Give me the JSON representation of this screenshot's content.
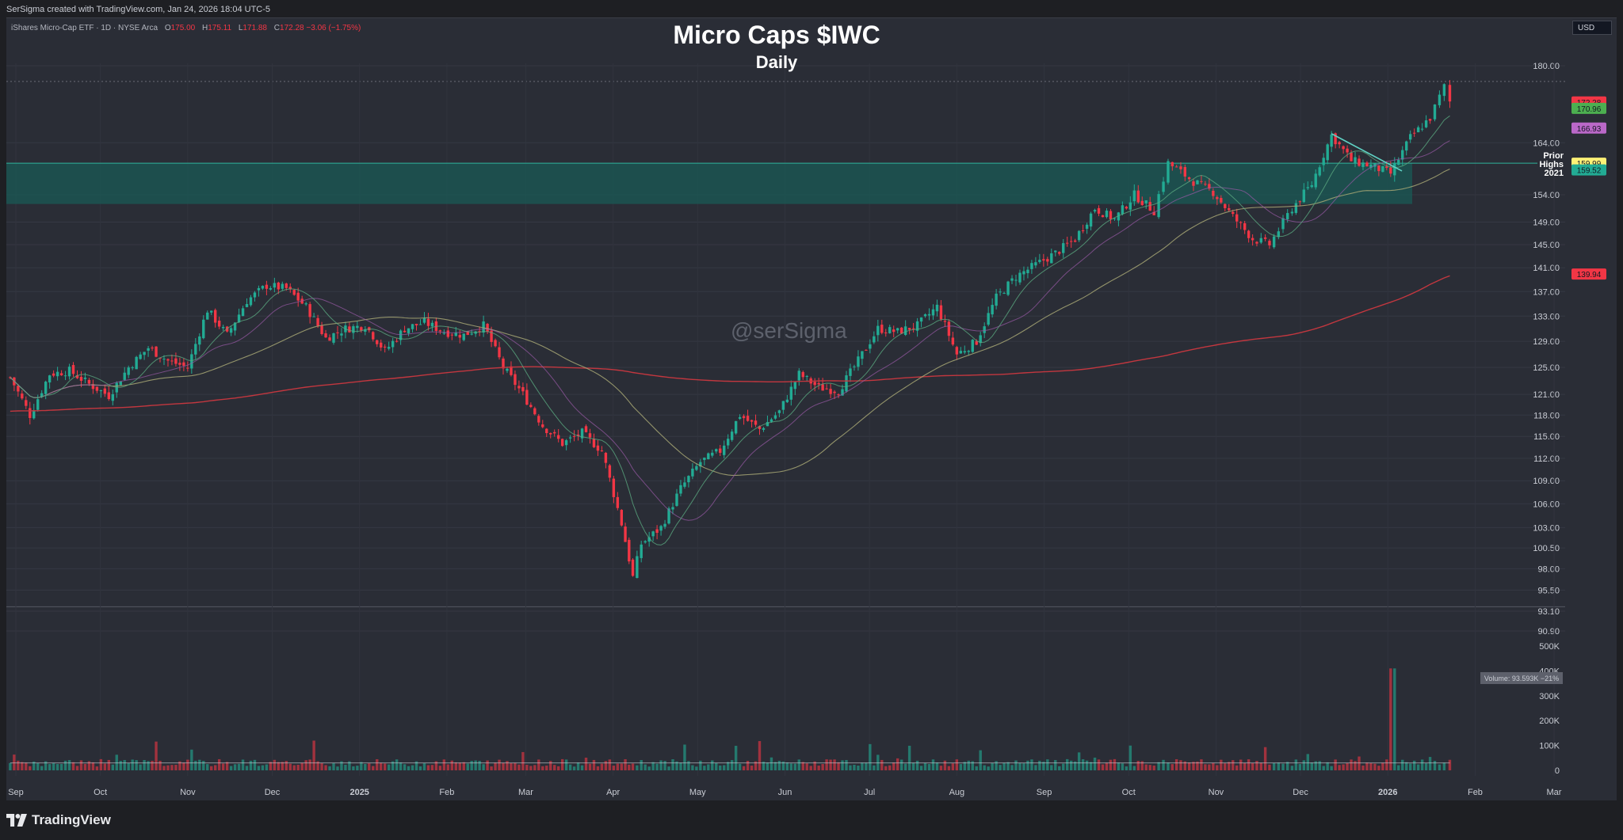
{
  "header": {
    "created_by": "SerSigma created with TradingView.com, Jan 24, 2026 18:04 UTC-5"
  },
  "legend": {
    "symbol": "iShares Micro-Cap ETF · 1D · NYSE Arca",
    "o_label": "O",
    "o": "175.00",
    "h_label": "H",
    "h": "175.11",
    "l_label": "L",
    "l": "171.88",
    "c_label": "C",
    "c": "172.28",
    "change": "−3.06 (−1.75%)"
  },
  "currency": "USD",
  "watermark": "@serSigma",
  "footer": {
    "brand": "TradingView"
  },
  "colors": {
    "up": "#22ab94",
    "down": "#f23645",
    "background": "#2a2d36",
    "zone": "#1a5a55",
    "sma200": "#c2373f",
    "sma50": "#a7a774",
    "ema21": "#9a5aa6",
    "ema10": "#5aa77f"
  },
  "chart_data": {
    "type": "candlestick",
    "title": "Micro Caps $IWC",
    "subtitle": "Daily",
    "scale": "log",
    "ylim": [
      90.9,
      183.0
    ],
    "price_ticks": [
      "180.00",
      "164.00",
      "154.00",
      "149.00",
      "145.00",
      "141.00",
      "137.00",
      "133.00",
      "129.00",
      "125.00",
      "121.00",
      "118.00",
      "115.00",
      "112.00",
      "109.00",
      "106.00",
      "103.00",
      "100.50",
      "98.00",
      "95.50",
      "93.10",
      "90.90"
    ],
    "x_labels": [
      "Sep",
      "Oct",
      "Nov",
      "Dec",
      "2025",
      "Feb",
      "Mar",
      "Apr",
      "May",
      "Jun",
      "Jul",
      "Aug",
      "Sep",
      "Oct",
      "Nov",
      "Dec",
      "2026",
      "Feb",
      "Mar"
    ],
    "price_badges": [
      {
        "value": "172.28",
        "color": "#f23645"
      },
      {
        "value": "170.96",
        "color": "#4caf50"
      },
      {
        "value": "166.93",
        "color": "#ba68c8"
      },
      {
        "value": "159.99",
        "color": "#fff176"
      },
      {
        "value": "159.52",
        "color": "#22ab94"
      },
      {
        "value": "139.94",
        "color": "#f23645"
      }
    ],
    "zone": {
      "low": 152.3,
      "high": 160.0,
      "label_lines": [
        "Prior",
        "Highs",
        "2021"
      ]
    },
    "volume_ticks": [
      "500K",
      "400K",
      "300K",
      "200K",
      "100K",
      "0"
    ],
    "volume_badge": "Volume: 93.593K −21%",
    "close_path": [
      {
        "date": "2024-08-30",
        "close": 123.5
      },
      {
        "date": "2024-09-06",
        "close": 118.0
      },
      {
        "date": "2024-09-13",
        "close": 124.0
      },
      {
        "date": "2024-09-20",
        "close": 124.5
      },
      {
        "date": "2024-09-27",
        "close": 122.5
      },
      {
        "date": "2024-10-04",
        "close": 120.8
      },
      {
        "date": "2024-10-11",
        "close": 125.0
      },
      {
        "date": "2024-10-18",
        "close": 128.0
      },
      {
        "date": "2024-10-25",
        "close": 126.0
      },
      {
        "date": "2024-11-01",
        "close": 125.0
      },
      {
        "date": "2024-11-08",
        "close": 134.0
      },
      {
        "date": "2024-11-15",
        "close": 130.0
      },
      {
        "date": "2024-11-22",
        "close": 135.5
      },
      {
        "date": "2024-11-29",
        "close": 138.0
      },
      {
        "date": "2024-12-06",
        "close": 137.5
      },
      {
        "date": "2024-12-13",
        "close": 134.5
      },
      {
        "date": "2024-12-20",
        "close": 129.5
      },
      {
        "date": "2024-12-27",
        "close": 131.0
      },
      {
        "date": "2025-01-03",
        "close": 131.5
      },
      {
        "date": "2025-01-10",
        "close": 127.5
      },
      {
        "date": "2025-01-17",
        "close": 131.0
      },
      {
        "date": "2025-01-24",
        "close": 132.0
      },
      {
        "date": "2025-01-31",
        "close": 130.5
      },
      {
        "date": "2025-02-07",
        "close": 130.0
      },
      {
        "date": "2025-02-14",
        "close": 131.5
      },
      {
        "date": "2025-02-21",
        "close": 125.0
      },
      {
        "date": "2025-02-28",
        "close": 121.0
      },
      {
        "date": "2025-03-07",
        "close": 116.5
      },
      {
        "date": "2025-03-14",
        "close": 114.0
      },
      {
        "date": "2025-03-21",
        "close": 115.5
      },
      {
        "date": "2025-03-28",
        "close": 113.0
      },
      {
        "date": "2025-04-04",
        "close": 103.5
      },
      {
        "date": "2025-04-08",
        "close": 97.0
      },
      {
        "date": "2025-04-11",
        "close": 101.0
      },
      {
        "date": "2025-04-18",
        "close": 103.0
      },
      {
        "date": "2025-04-25",
        "close": 108.0
      },
      {
        "date": "2025-05-02",
        "close": 111.5
      },
      {
        "date": "2025-05-09",
        "close": 113.0
      },
      {
        "date": "2025-05-16",
        "close": 118.0
      },
      {
        "date": "2025-05-23",
        "close": 116.0
      },
      {
        "date": "2025-05-30",
        "close": 118.5
      },
      {
        "date": "2025-06-06",
        "close": 124.0
      },
      {
        "date": "2025-06-13",
        "close": 122.0
      },
      {
        "date": "2025-06-20",
        "close": 121.5
      },
      {
        "date": "2025-06-27",
        "close": 126.0
      },
      {
        "date": "2025-07-04",
        "close": 131.0
      },
      {
        "date": "2025-07-11",
        "close": 130.5
      },
      {
        "date": "2025-07-18",
        "close": 131.5
      },
      {
        "date": "2025-07-25",
        "close": 134.5
      },
      {
        "date": "2025-08-01",
        "close": 127.0
      },
      {
        "date": "2025-08-08",
        "close": 129.0
      },
      {
        "date": "2025-08-15",
        "close": 136.0
      },
      {
        "date": "2025-08-22",
        "close": 139.5
      },
      {
        "date": "2025-08-29",
        "close": 141.5
      },
      {
        "date": "2025-09-05",
        "close": 143.5
      },
      {
        "date": "2025-09-12",
        "close": 146.0
      },
      {
        "date": "2025-09-19",
        "close": 151.5
      },
      {
        "date": "2025-09-26",
        "close": 149.5
      },
      {
        "date": "2025-10-03",
        "close": 154.0
      },
      {
        "date": "2025-10-10",
        "close": 151.0
      },
      {
        "date": "2025-10-15",
        "close": 160.0
      },
      {
        "date": "2025-10-24",
        "close": 156.5
      },
      {
        "date": "2025-10-31",
        "close": 154.5
      },
      {
        "date": "2025-11-07",
        "close": 150.0
      },
      {
        "date": "2025-11-14",
        "close": 146.0
      },
      {
        "date": "2025-11-20",
        "close": 145.0
      },
      {
        "date": "2025-11-28",
        "close": 151.5
      },
      {
        "date": "2025-12-05",
        "close": 156.0
      },
      {
        "date": "2025-12-12",
        "close": 165.5
      },
      {
        "date": "2025-12-19",
        "close": 160.5
      },
      {
        "date": "2025-12-26",
        "close": 159.5
      },
      {
        "date": "2026-01-02",
        "close": 158.0
      },
      {
        "date": "2026-01-09",
        "close": 165.0
      },
      {
        "date": "2026-01-16",
        "close": 169.0
      },
      {
        "date": "2026-01-21",
        "close": 175.5
      },
      {
        "date": "2026-01-23",
        "close": 172.28
      }
    ]
  }
}
